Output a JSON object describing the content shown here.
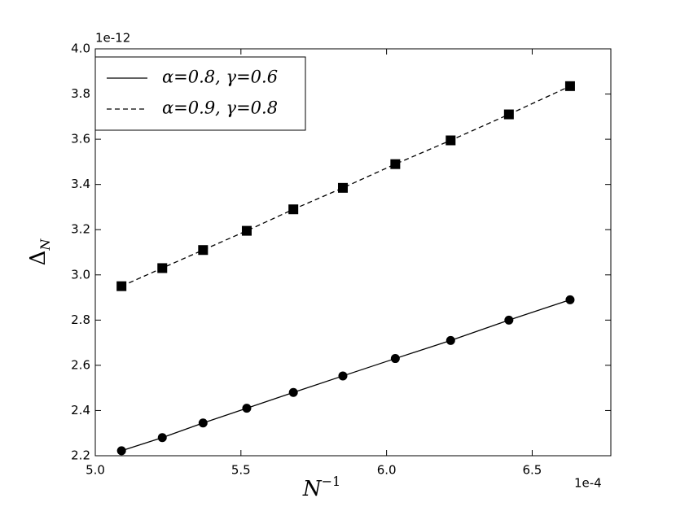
{
  "chart_data": {
    "type": "line",
    "x_label": "N",
    "x_label_sup": "−1",
    "y_label": "Δ",
    "y_label_sub": "N",
    "x_offset": "1e-4",
    "y_offset": "1e-12",
    "xlim": [
      5.0,
      6.77
    ],
    "ylim": [
      2.2,
      4.0
    ],
    "xticks": [
      {
        "value": 5.0,
        "label": "5.0"
      },
      5.5,
      {
        "value": 6.0,
        "label": "6.0"
      },
      6.5
    ],
    "yticks": [
      {
        "value": 2.2,
        "label": "2.2"
      },
      {
        "value": 2.4,
        "label": "2.4"
      },
      {
        "value": 2.6,
        "label": "2.6"
      },
      {
        "value": 2.8,
        "label": "2.8"
      },
      {
        "value": 3.0,
        "label": "3.0"
      },
      {
        "value": 3.2,
        "label": "3.2"
      },
      {
        "value": 3.4,
        "label": "3.4"
      },
      {
        "value": 3.6,
        "label": "3.6"
      },
      {
        "value": 3.8,
        "label": "3.8"
      },
      {
        "value": 4.0,
        "label": "4.0"
      }
    ],
    "legend": "upper left",
    "x": [
      5.09,
      5.23,
      5.37,
      5.52,
      5.68,
      5.85,
      6.03,
      6.22,
      6.42,
      6.63
    ],
    "series": [
      {
        "name": "α=0.8, γ=0.6",
        "color": "#000000",
        "dash": "solid",
        "marker": "circle",
        "values": [
          2.222,
          2.28,
          2.345,
          2.41,
          2.48,
          2.553,
          2.63,
          2.71,
          2.8,
          2.89
        ]
      },
      {
        "name": "α=0.9, γ=0.8",
        "color": "#000000",
        "dash": "dashed",
        "marker": "square",
        "values": [
          2.95,
          3.03,
          3.11,
          3.195,
          3.29,
          3.385,
          3.49,
          3.595,
          3.71,
          3.835
        ]
      }
    ]
  }
}
